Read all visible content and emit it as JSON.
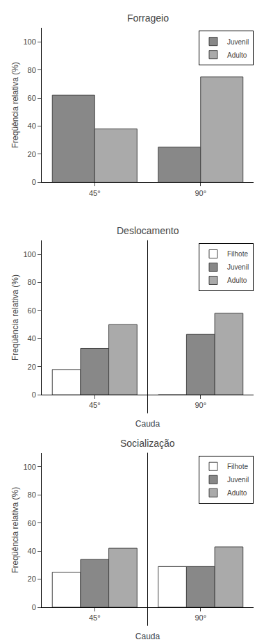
{
  "chart_data": [
    {
      "type": "bar",
      "title": "Forrageio",
      "categories": [
        "45°",
        "90°"
      ],
      "series": [
        {
          "name": "Juvenil",
          "color": "#888888",
          "values": [
            62,
            25
          ]
        },
        {
          "name": "Adulto",
          "color": "#aaaaaa",
          "values": [
            38,
            75
          ]
        }
      ],
      "ylabel": "Freqüência relativa (%)",
      "ylim": [
        0,
        110
      ],
      "yticks": [
        0,
        20,
        40,
        60,
        80,
        100
      ],
      "legend": "upper right",
      "grid": false
    },
    {
      "type": "bar",
      "title": "Deslocamento",
      "categories": [
        "45°",
        "90°"
      ],
      "series": [
        {
          "name": "Filhote",
          "color": "#ffffff",
          "values": [
            18,
            0
          ]
        },
        {
          "name": "Juvenil",
          "color": "#888888",
          "values": [
            33,
            43
          ]
        },
        {
          "name": "Adulto",
          "color": "#aaaaaa",
          "values": [
            50,
            58
          ]
        }
      ],
      "ylabel": "Freqüência relativa (%)",
      "xlabel": "Cauda",
      "ylim": [
        0,
        110
      ],
      "yticks": [
        0,
        20,
        40,
        60,
        80,
        100
      ],
      "legend": "upper right",
      "grid": false
    },
    {
      "type": "bar",
      "title": "Socialização",
      "categories": [
        "45°",
        "90°"
      ],
      "series": [
        {
          "name": "Filhote",
          "color": "#ffffff",
          "values": [
            25,
            29
          ]
        },
        {
          "name": "Juvenil",
          "color": "#888888",
          "values": [
            34,
            29
          ]
        },
        {
          "name": "Adulto",
          "color": "#aaaaaa",
          "values": [
            42,
            43
          ]
        }
      ],
      "ylabel": "Freqüência relativa (%)",
      "xlabel": "Cauda",
      "ylim": [
        0,
        110
      ],
      "yticks": [
        0,
        20,
        40,
        60,
        80,
        100
      ],
      "legend": "upper right",
      "grid": false
    }
  ]
}
